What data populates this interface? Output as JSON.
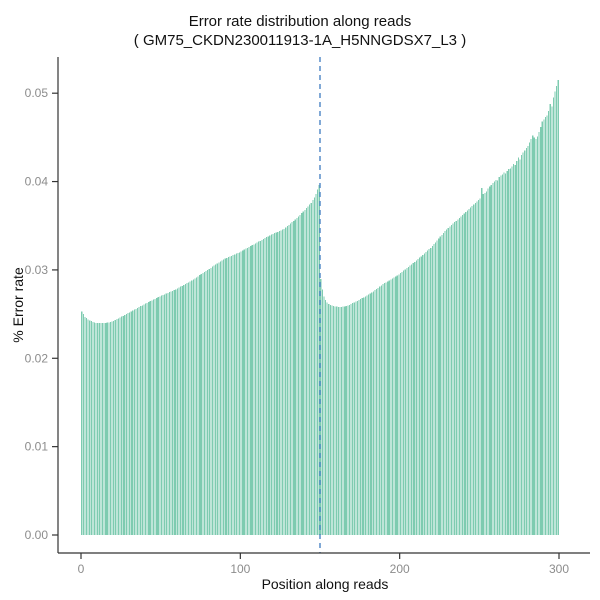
{
  "chart_data": {
    "type": "bar",
    "title": "Error rate distribution along reads",
    "subtitle": "( GM75_CKDN230011913-1A_H5NNGDSX7_L3 )",
    "xlabel": "Position along reads",
    "ylabel": "% Error rate",
    "xlim": [
      0,
      300
    ],
    "ylim": [
      0,
      0.05
    ],
    "grid": false,
    "legend": "none",
    "bar_color": "#7ecbb0",
    "axis_line_color": "#333333",
    "tick_label_color": "#8c8c8c",
    "vline": {
      "x": 150,
      "style": "dashed",
      "color": "#4b84c4"
    },
    "x_ticks": [
      {
        "value": 0,
        "label": "0"
      },
      {
        "value": 100,
        "label": "100"
      },
      {
        "value": 200,
        "label": "200"
      },
      {
        "value": 300,
        "label": "300"
      }
    ],
    "y_ticks": [
      {
        "value": 0.0,
        "label": "0.00"
      },
      {
        "value": 0.01,
        "label": "0.01"
      },
      {
        "value": 0.02,
        "label": "0.02"
      },
      {
        "value": 0.03,
        "label": "0.03"
      },
      {
        "value": 0.04,
        "label": "0.04"
      },
      {
        "value": 0.05,
        "label": "0.05"
      }
    ],
    "x_positions_note": "bars are read positions 1-300, values below are % error rate per position",
    "values": [
      0.0253,
      0.025,
      0.0247,
      0.02455,
      0.0244,
      0.0243,
      0.0242,
      0.02412,
      0.02406,
      0.02402,
      0.024,
      0.02398,
      0.02397,
      0.02397,
      0.02398,
      0.024,
      0.02403,
      0.02406,
      0.0241,
      0.02415,
      0.02424,
      0.02433,
      0.02442,
      0.02452,
      0.02461,
      0.02471,
      0.02481,
      0.02491,
      0.025,
      0.0251,
      0.0252,
      0.0253,
      0.0254,
      0.0255,
      0.0256,
      0.0257,
      0.0258,
      0.0259,
      0.026,
      0.0261,
      0.02619,
      0.02628,
      0.02637,
      0.02646,
      0.02655,
      0.02664,
      0.02673,
      0.02682,
      0.02691,
      0.027,
      0.02708,
      0.02716,
      0.02724,
      0.02732,
      0.0274,
      0.02748,
      0.02756,
      0.02764,
      0.02772,
      0.0278,
      0.0279,
      0.028,
      0.0281,
      0.0282,
      0.0283,
      0.0284,
      0.0285,
      0.0286,
      0.0287,
      0.0288,
      0.02892,
      0.02904,
      0.02916,
      0.02928,
      0.0294,
      0.02952,
      0.02964,
      0.02976,
      0.02988,
      0.03,
      0.03012,
      0.03024,
      0.03036,
      0.03048,
      0.0306,
      0.03072,
      0.03084,
      0.03096,
      0.03108,
      0.0312,
      0.03128,
      0.03136,
      0.03144,
      0.03152,
      0.0316,
      0.03168,
      0.03176,
      0.03184,
      0.03192,
      0.032,
      0.0321,
      0.0322,
      0.0323,
      0.0324,
      0.0325,
      0.0326,
      0.0327,
      0.0328,
      0.0329,
      0.033,
      0.0331,
      0.0332,
      0.0333,
      0.0334,
      0.0335,
      0.0336,
      0.0337,
      0.0338,
      0.0339,
      0.034,
      0.03408,
      0.03416,
      0.03424,
      0.03432,
      0.0344,
      0.03448,
      0.03456,
      0.03465,
      0.0348,
      0.03495,
      0.0351,
      0.03525,
      0.0354,
      0.03555,
      0.0357,
      0.03588,
      0.03606,
      0.03624,
      0.03642,
      0.0366,
      0.0368,
      0.037,
      0.0372,
      0.0374,
      0.0376,
      0.0379,
      0.0382,
      0.0386,
      0.0391,
      0.0396,
      0.029,
      0.0278,
      0.027,
      0.0266,
      0.0263,
      0.02615,
      0.02605,
      0.02598,
      0.02592,
      0.02588,
      0.02585,
      0.02582,
      0.02582,
      0.02583,
      0.02585,
      0.02588,
      0.02592,
      0.02597,
      0.02603,
      0.02615,
      0.02624,
      0.02633,
      0.02642,
      0.02651,
      0.0266,
      0.0267,
      0.0268,
      0.0269,
      0.027,
      0.0271,
      0.02722,
      0.02734,
      0.02746,
      0.02758,
      0.0277,
      0.02784,
      0.02798,
      0.02812,
      0.02826,
      0.0284,
      0.0285,
      0.0286,
      0.0287,
      0.0288,
      0.0289,
      0.02902,
      0.02914,
      0.02926,
      0.02938,
      0.0295,
      0.02964,
      0.02978,
      0.02992,
      0.03006,
      0.0302,
      0.03034,
      0.03048,
      0.03062,
      0.03076,
      0.0309,
      0.03106,
      0.03122,
      0.03138,
      0.03154,
      0.0317,
      0.03186,
      0.03202,
      0.03218,
      0.03234,
      0.0325,
      0.03271,
      0.03292,
      0.03313,
      0.03334,
      0.03355,
      0.03376,
      0.03397,
      0.03418,
      0.03439,
      0.0346,
      0.03476,
      0.03492,
      0.03508,
      0.03524,
      0.0354,
      0.03556,
      0.03572,
      0.03588,
      0.03604,
      0.0362,
      0.03637,
      0.03654,
      0.03671,
      0.03688,
      0.03705,
      0.03722,
      0.03739,
      0.03756,
      0.03773,
      0.0379,
      0.0381,
      0.0393,
      0.0386,
      0.0387,
      0.0389,
      0.0392,
      0.03945,
      0.0396,
      0.03985,
      0.04,
      0.0402,
      0.0401,
      0.0405,
      0.0407,
      0.0408,
      0.041,
      0.0409,
      0.0412,
      0.0414,
      0.0415,
      0.0417,
      0.042,
      0.0419,
      0.0423,
      0.0427,
      0.0425,
      0.043,
      0.0433,
      0.0435,
      0.0438,
      0.044,
      0.0444,
      0.0448,
      0.0452,
      0.045,
      0.0448,
      0.0451,
      0.0456,
      0.0462,
      0.0468,
      0.047,
      0.0473,
      0.0475,
      0.048,
      0.0488,
      0.0485,
      0.0495,
      0.0502,
      0.0508,
      0.0515
    ]
  }
}
